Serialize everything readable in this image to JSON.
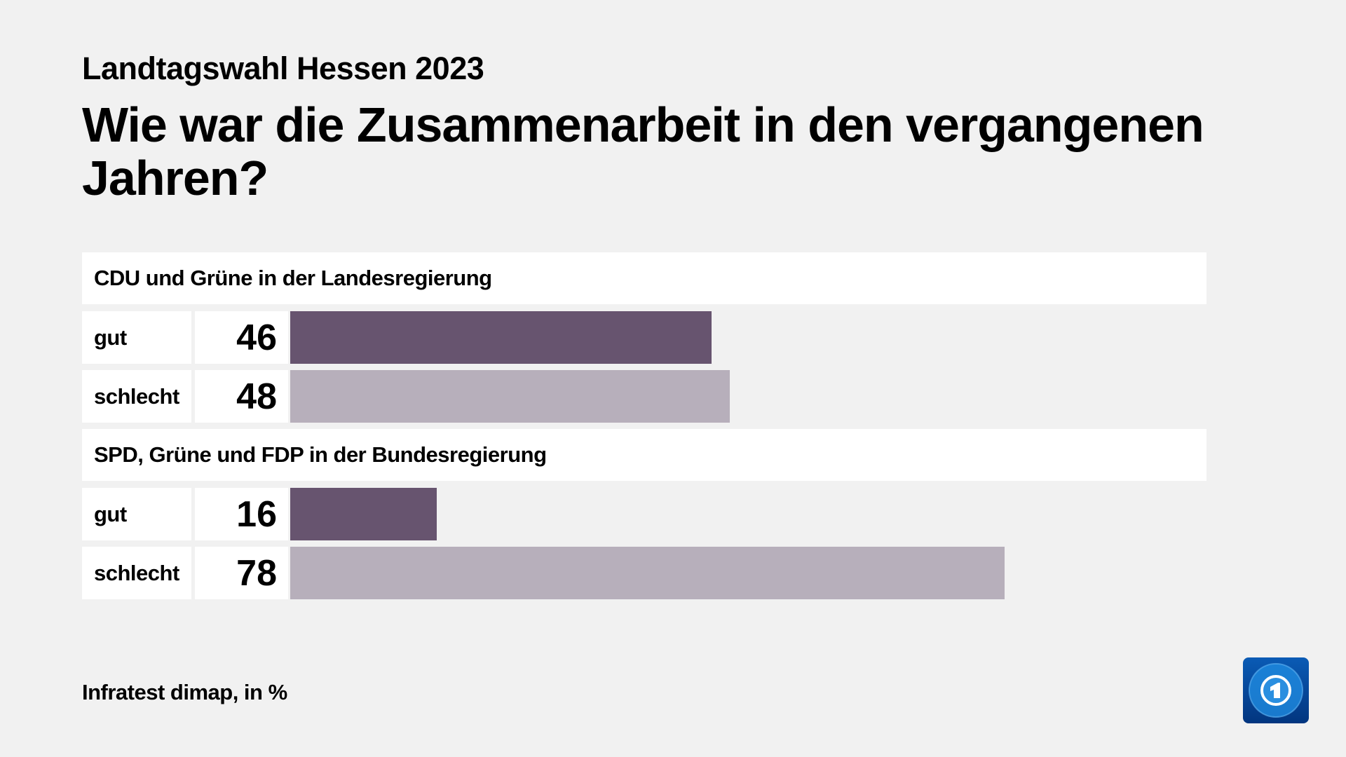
{
  "header": {
    "subtitle": "Landtagswahl Hessen 2023",
    "title": "Wie war die Zusammenarbeit in den vergangenen Jahren?"
  },
  "footer": {
    "source": "Infratest dimap, in %"
  },
  "logo": {
    "icon": "tagesschau-globe-1-logo"
  },
  "colors": {
    "gut": "#67546f",
    "schlecht": "#b7afbb",
    "background": "#f1f1f1"
  },
  "chart_data": {
    "type": "bar",
    "orientation": "horizontal",
    "xlim": [
      0,
      100
    ],
    "groups": [
      {
        "title": "CDU und Grüne in der Landesregierung",
        "rows": [
          {
            "label": "gut",
            "value": 46
          },
          {
            "label": "schlecht",
            "value": 48
          }
        ]
      },
      {
        "title": "SPD, Grüne und FDP in der Bundesregierung",
        "rows": [
          {
            "label": "gut",
            "value": 16
          },
          {
            "label": "schlecht",
            "value": 78
          }
        ]
      }
    ]
  }
}
